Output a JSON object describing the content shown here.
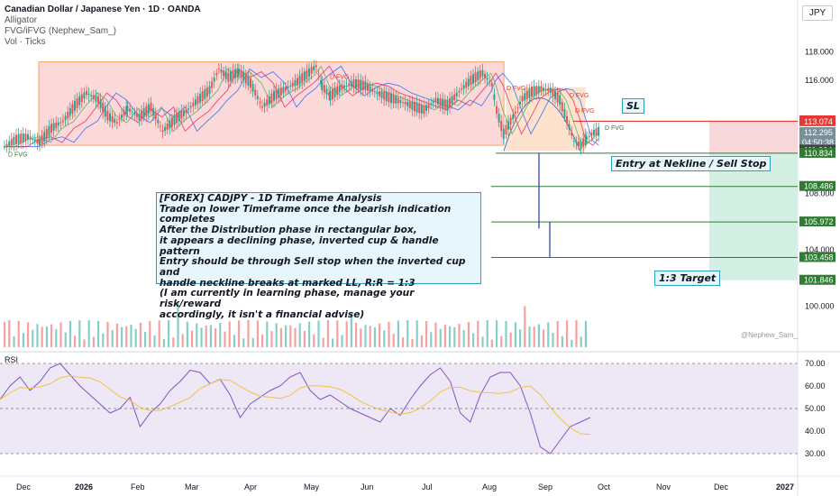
{
  "legend": {
    "title": "Canadian Dollar / Japanese Yen · 1D · OANDA",
    "indicators": [
      "Alligator",
      "FVG/iFVG (Nephew_Sam_)",
      "Vol · Ticks"
    ]
  },
  "currency_label": "JPY",
  "rsi_label": "RSI",
  "watermark": "@Nephew_Sam_",
  "annotations": {
    "analysis_lines": [
      "[FOREX] CADJPY - 1D Timeframe Analysis",
      "Trade on lower Timeframe once the bearish indication completes",
      "After the Distribution phase in rectangular box,",
      "it appears a declining phase, inverted cup & handle pattern",
      "Entry should be through Sell stop when the inverted cup and",
      "handle neckline breaks at marked LL, R:R = 1:3",
      "(I am currently in learning phase, manage your risk/reward",
      "accordingly, it isn't a financial advise)"
    ],
    "entry": "Entry at Nekline / Sell Stop",
    "target": "1:3 Target",
    "sl": "SL",
    "fvg_labels": [
      "D FVG",
      "D FVG",
      "D FVG",
      "D FVG",
      "D FVG",
      "D FVG"
    ]
  },
  "colors": {
    "up": "#26a69a",
    "down": "#ef5350",
    "range_box": "#f7a35c",
    "stop_zone": "#f8d7da",
    "target_zone": "#d4efe4",
    "rsi_line": "#7e57c2",
    "rsi_ma": "#f5c242",
    "rsi_band": "#ede7f6",
    "level_green": "#2e7d32",
    "level_red": "#e53935"
  },
  "chart_data": [
    {
      "type": "candlestick",
      "symbol": "CADJPY",
      "timeframe": "1D",
      "ylim": [
        98.5,
        119.5
      ],
      "y_ticks": [
        100.0,
        104.0,
        108.0,
        112.0,
        116.0,
        118.0
      ],
      "y_tick_labels": [
        "100.000",
        "104.000",
        "108.000",
        "112.000",
        "116.000",
        "118.000"
      ],
      "x_ticks": [
        "Dec",
        "2026",
        "Feb",
        "Mar",
        "Apr",
        "May",
        "Jun",
        "Jul",
        "Aug",
        "Sep",
        "Oct",
        "Nov",
        "Dec",
        "2027"
      ],
      "price_tags": [
        {
          "label": "113.128",
          "price": 113.128,
          "color": "#e53935"
        },
        {
          "label": "113.074",
          "price": 113.074,
          "color": "#e53935"
        },
        {
          "label": "112.295",
          "price": 112.295,
          "color": "#78909c",
          "sub": "04:50:38"
        },
        {
          "label": "111.064",
          "price": 111.064,
          "color": "#424242"
        },
        {
          "label": "110.834",
          "price": 110.834,
          "color": "#2e7d32"
        },
        {
          "label": "108.486",
          "price": 108.486,
          "color": "#2e7d32"
        },
        {
          "label": "105.972",
          "price": 105.972,
          "color": "#2e7d32"
        },
        {
          "label": "103.458",
          "price": 103.458,
          "color": "#2e7d32"
        },
        {
          "label": "101.846",
          "price": 101.846,
          "color": "#2e7d32"
        }
      ],
      "levels": [
        110.834,
        108.486,
        105.972,
        103.458
      ],
      "distribution_box": {
        "start": 30,
        "end": 427,
        "top": 117.3,
        "bottom": 111.4
      },
      "cup_box": {
        "start": 427,
        "end": 495,
        "top": 115.5,
        "bottom": 111.0
      },
      "stop_line": 113.1,
      "series_path": [
        [
          0,
          111.3
        ],
        [
          10,
          111.8
        ],
        [
          20,
          112.0
        ],
        [
          30,
          111.6
        ],
        [
          40,
          112.6
        ],
        [
          50,
          113.1
        ],
        [
          60,
          114.2
        ],
        [
          70,
          115.1
        ],
        [
          80,
          114.6
        ],
        [
          88,
          113.5
        ],
        [
          96,
          113.0
        ],
        [
          105,
          114.0
        ],
        [
          115,
          113.4
        ],
        [
          125,
          114.1
        ],
        [
          135,
          112.4
        ],
        [
          145,
          113.2
        ],
        [
          155,
          113.8
        ],
        [
          165,
          114.6
        ],
        [
          175,
          115.3
        ],
        [
          183,
          116.8
        ],
        [
          191,
          116.2
        ],
        [
          200,
          116.6
        ],
        [
          210,
          115.8
        ],
        [
          220,
          114.1
        ],
        [
          230,
          114.9
        ],
        [
          240,
          115.4
        ],
        [
          250,
          115.9
        ],
        [
          258,
          116.4
        ],
        [
          266,
          117.0
        ],
        [
          271,
          115.6
        ],
        [
          278,
          114.9
        ],
        [
          288,
          115.5
        ],
        [
          298,
          115.8
        ],
        [
          308,
          115.6
        ],
        [
          318,
          115.1
        ],
        [
          328,
          114.8
        ],
        [
          338,
          114.5
        ],
        [
          348,
          114.2
        ],
        [
          358,
          113.9
        ],
        [
          368,
          114.6
        ],
        [
          378,
          114.2
        ],
        [
          388,
          115.2
        ],
        [
          398,
          116.0
        ],
        [
          408,
          116.5
        ],
        [
          416,
          115.7
        ],
        [
          420,
          113.9
        ],
        [
          426,
          112.2
        ],
        [
          434,
          113.4
        ],
        [
          442,
          114.7
        ],
        [
          450,
          115.2
        ],
        [
          458,
          115.4
        ],
        [
          466,
          115.3
        ],
        [
          474,
          114.6
        ],
        [
          480,
          113.2
        ],
        [
          486,
          111.7
        ],
        [
          492,
          111.4
        ],
        [
          497,
          111.9
        ],
        [
          503,
          112.3
        ],
        [
          508,
          112.4
        ]
      ],
      "rsi": {
        "ylim": [
          25,
          75
        ],
        "y_ticks": [
          30,
          40,
          50,
          60,
          70
        ],
        "y_tick_labels": [
          "30.00",
          "40.00",
          "50.00",
          "60.00",
          "70.00"
        ],
        "bands": [
          30,
          50,
          70
        ],
        "values": [
          54,
          60,
          64,
          58,
          62,
          68,
          70,
          65,
          60,
          56,
          52,
          48,
          50,
          55,
          42,
          48,
          52,
          58,
          62,
          67,
          66,
          61,
          63,
          56,
          46,
          52,
          55,
          58,
          60,
          64,
          66,
          58,
          54,
          56,
          53,
          50,
          48,
          46,
          44,
          50,
          47,
          54,
          60,
          65,
          68,
          62,
          48,
          44,
          56,
          64,
          66,
          66,
          60,
          48,
          33,
          30,
          36,
          42,
          44,
          46
        ]
      }
    }
  ]
}
